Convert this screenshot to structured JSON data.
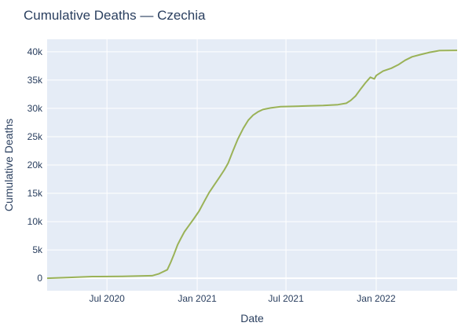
{
  "chart_data": {
    "type": "line",
    "title": "Cumulative Deaths — Czechia",
    "xlabel": "Date",
    "ylabel": "Cumulative Deaths",
    "x_range": [
      "2020-03-01",
      "2022-06-15"
    ],
    "y_range": [
      -2200,
      42200
    ],
    "x_ticks": [
      {
        "date": "2020-07-01",
        "label": "Jul 2020"
      },
      {
        "date": "2021-01-01",
        "label": "Jan 2021"
      },
      {
        "date": "2021-07-01",
        "label": "Jul 2021"
      },
      {
        "date": "2022-01-01",
        "label": "Jan 2022"
      }
    ],
    "y_ticks": [
      {
        "value": 0,
        "label": "0"
      },
      {
        "value": 5000,
        "label": "5k"
      },
      {
        "value": 10000,
        "label": "10k"
      },
      {
        "value": 15000,
        "label": "15k"
      },
      {
        "value": 20000,
        "label": "20k"
      },
      {
        "value": 25000,
        "label": "25k"
      },
      {
        "value": 30000,
        "label": "30k"
      },
      {
        "value": 35000,
        "label": "35k"
      },
      {
        "value": 40000,
        "label": "40k"
      }
    ],
    "grid": true,
    "colors": {
      "line": "#9ab257",
      "plot_bg": "#e5ecf6",
      "grid": "#ffffff",
      "text": "#2a3f5f"
    },
    "series": [
      {
        "x": [
          "2020-03-01",
          "2020-04-15",
          "2020-06-01",
          "2020-08-01",
          "2020-10-01",
          "2020-10-15",
          "2020-11-01",
          "2020-11-08",
          "2020-11-15",
          "2020-11-22",
          "2020-11-29",
          "2020-12-06",
          "2020-12-15",
          "2020-12-25",
          "2021-01-05",
          "2021-01-15",
          "2021-01-25",
          "2021-02-05",
          "2021-02-15",
          "2021-02-25",
          "2021-03-05",
          "2021-03-15",
          "2021-03-25",
          "2021-04-05",
          "2021-04-15",
          "2021-04-25",
          "2021-05-05",
          "2021-05-15",
          "2021-06-01",
          "2021-06-20",
          "2021-07-15",
          "2021-08-15",
          "2021-09-15",
          "2021-10-15",
          "2021-11-01",
          "2021-11-10",
          "2021-11-20",
          "2021-12-01",
          "2021-12-10",
          "2021-12-20",
          "2021-12-28",
          "2022-01-01",
          "2022-01-15",
          "2022-02-01",
          "2022-02-15",
          "2022-03-01",
          "2022-03-15",
          "2022-04-01",
          "2022-04-20",
          "2022-05-10",
          "2022-06-15"
        ],
        "y": [
          0,
          150,
          300,
          330,
          450,
          800,
          1500,
          2800,
          4300,
          5900,
          7100,
          8200,
          9300,
          10500,
          11900,
          13500,
          15100,
          16500,
          17800,
          19100,
          20300,
          22500,
          24600,
          26500,
          27900,
          28800,
          29400,
          29800,
          30100,
          30300,
          30350,
          30450,
          30500,
          30650,
          30900,
          31400,
          32200,
          33500,
          34500,
          35500,
          35200,
          35800,
          36600,
          37100,
          37700,
          38500,
          39100,
          39500,
          39900,
          40200,
          40250
        ]
      }
    ]
  }
}
